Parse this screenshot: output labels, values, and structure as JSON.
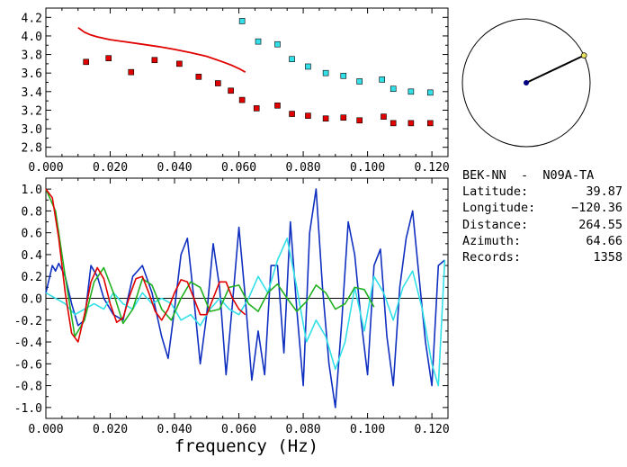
{
  "station": {
    "title": "BEK-NN  -  N09A-TA",
    "rows": [
      {
        "label": "Latitude:",
        "value": "39.87"
      },
      {
        "label": "Longitude:",
        "value": "−120.36"
      },
      {
        "label": "Distance:",
        "value": "264.55"
      },
      {
        "label": "Azimuth:",
        "value": "64.66"
      },
      {
        "label": "Records:",
        "value": "1358"
      }
    ]
  },
  "colors": {
    "red": "#e00000",
    "cyan": "#33e0e8",
    "blue": "#1030c0",
    "green": "#20b020",
    "navy": "#000080",
    "yellow": "#e8e060"
  },
  "chart_data": [
    {
      "type": "scatter",
      "xlim": [
        0.0,
        0.125
      ],
      "ylim": [
        2.7,
        4.3
      ],
      "x_ticks": [
        "0.000",
        "0.020",
        "0.040",
        "0.060",
        "0.080",
        "0.100",
        "0.120"
      ],
      "y_ticks": [
        "2.8",
        "3.0",
        "3.2",
        "3.4",
        "3.6",
        "3.8",
        "4.0",
        "4.2"
      ],
      "series": [
        {
          "color": "#e00000",
          "style": "squares",
          "x": [
            0.0125,
            0.0195,
            0.0265,
            0.0338,
            0.0415,
            0.0475,
            0.0535,
            0.0575,
            0.061,
            0.0655,
            0.072,
            0.0765,
            0.0815,
            0.087,
            0.0925,
            0.0975,
            0.105,
            0.108,
            0.1135,
            0.1195
          ],
          "y": [
            3.72,
            3.76,
            3.61,
            3.74,
            3.7,
            3.56,
            3.49,
            3.41,
            3.31,
            3.22,
            3.25,
            3.16,
            3.14,
            3.11,
            3.12,
            3.09,
            3.13,
            3.06,
            3.06,
            3.06
          ]
        },
        {
          "color": "#33e0e8",
          "style": "squares",
          "x": [
            0.061,
            0.066,
            0.072,
            0.0765,
            0.0815,
            0.087,
            0.0925,
            0.0975,
            0.1045,
            0.108,
            0.1135,
            0.1195
          ],
          "y": [
            4.16,
            3.94,
            3.91,
            3.75,
            3.67,
            3.6,
            3.57,
            3.51,
            3.53,
            3.43,
            3.4,
            3.39
          ]
        },
        {
          "color": "#e00000",
          "style": "line",
          "x": [
            0.01,
            0.012,
            0.014,
            0.016,
            0.02,
            0.025,
            0.03,
            0.035,
            0.04,
            0.045,
            0.05,
            0.055,
            0.058,
            0.0605,
            0.062
          ],
          "y": [
            4.09,
            4.04,
            4.01,
            3.99,
            3.96,
            3.935,
            3.91,
            3.885,
            3.855,
            3.82,
            3.78,
            3.72,
            3.68,
            3.64,
            3.61
          ]
        }
      ]
    },
    {
      "type": "line",
      "xlim": [
        0.0,
        0.125
      ],
      "ylim": [
        -1.1,
        1.1
      ],
      "x_ticks": [
        "0.000",
        "0.020",
        "0.040",
        "0.060",
        "0.080",
        "0.100",
        "0.120"
      ],
      "y_ticks": [
        "1.0",
        "0.8",
        "0.6",
        "0.4",
        "0.2",
        "0.0",
        "-0.2",
        "-0.4",
        "-0.6",
        "-0.8",
        "-1.0"
      ],
      "xlabel": "frequency (Hz)",
      "series": [
        {
          "color": "#1030c0",
          "x": [
            0.0,
            0.002,
            0.003,
            0.004,
            0.006,
            0.008,
            0.01,
            0.012,
            0.014,
            0.016,
            0.018,
            0.021,
            0.024,
            0.027,
            0.03,
            0.033,
            0.036,
            0.038,
            0.04,
            0.042,
            0.044,
            0.046,
            0.048,
            0.05,
            0.052,
            0.054,
            0.056,
            0.058,
            0.06,
            0.062,
            0.064,
            0.066,
            0.068,
            0.07,
            0.072,
            0.074,
            0.076,
            0.078,
            0.08,
            0.082,
            0.084,
            0.086,
            0.088,
            0.09,
            0.092,
            0.094,
            0.096,
            0.098,
            0.1,
            0.102,
            0.104,
            0.106,
            0.108,
            0.11,
            0.112,
            0.114,
            0.116,
            0.118,
            0.12,
            0.122,
            0.124
          ],
          "y": [
            0.05,
            0.3,
            0.25,
            0.32,
            0.2,
            -0.05,
            -0.25,
            -0.2,
            0.3,
            0.2,
            0.0,
            -0.15,
            -0.2,
            0.2,
            0.3,
            0.05,
            -0.35,
            -0.55,
            -0.1,
            0.4,
            0.55,
            0.0,
            -0.6,
            -0.15,
            0.5,
            0.1,
            -0.7,
            -0.05,
            0.65,
            0.0,
            -0.75,
            -0.3,
            -0.7,
            0.3,
            0.3,
            -0.5,
            0.7,
            -0.1,
            -0.8,
            0.6,
            1.0,
            0.1,
            -0.6,
            -1.0,
            -0.2,
            0.7,
            0.4,
            -0.2,
            -0.7,
            0.3,
            0.45,
            -0.35,
            -0.8,
            0.1,
            0.55,
            0.8,
            0.2,
            -0.4,
            -0.8,
            0.3,
            0.35
          ]
        },
        {
          "color": "#33e0e8",
          "x": [
            0.0,
            0.003,
            0.006,
            0.009,
            0.012,
            0.015,
            0.018,
            0.021,
            0.024,
            0.027,
            0.03,
            0.033,
            0.036,
            0.039,
            0.042,
            0.045,
            0.048,
            0.051,
            0.054,
            0.057,
            0.06,
            0.063,
            0.066,
            0.069,
            0.072,
            0.075,
            0.078,
            0.081,
            0.084,
            0.087,
            0.09,
            0.093,
            0.096,
            0.099,
            0.102,
            0.105,
            0.108,
            0.111,
            0.114,
            0.117,
            0.12,
            0.122,
            0.124
          ],
          "y": [
            0.05,
            0.0,
            -0.05,
            -0.15,
            -0.1,
            -0.05,
            -0.1,
            0.05,
            -0.05,
            -0.1,
            0.05,
            -0.05,
            0.0,
            -0.05,
            -0.2,
            -0.15,
            -0.25,
            -0.1,
            0.0,
            -0.1,
            -0.15,
            0.0,
            0.2,
            0.05,
            0.35,
            0.55,
            0.1,
            -0.4,
            -0.2,
            -0.35,
            -0.65,
            -0.4,
            0.1,
            -0.3,
            0.2,
            0.05,
            -0.2,
            0.1,
            0.25,
            -0.1,
            -0.6,
            -0.8,
            0.35
          ]
        },
        {
          "color": "#20b020",
          "x": [
            0.0,
            0.003,
            0.006,
            0.009,
            0.012,
            0.015,
            0.018,
            0.021,
            0.024,
            0.027,
            0.03,
            0.033,
            0.036,
            0.039,
            0.042,
            0.045,
            0.048,
            0.051,
            0.054,
            0.057,
            0.06,
            0.063,
            0.066,
            0.069,
            0.072,
            0.075,
            0.078,
            0.081,
            0.084,
            0.087,
            0.09,
            0.093,
            0.096,
            0.099,
            0.102
          ],
          "y": [
            1.0,
            0.8,
            0.2,
            -0.35,
            -0.2,
            0.15,
            0.28,
            0.05,
            -0.23,
            -0.1,
            0.18,
            0.12,
            -0.1,
            -0.2,
            0.0,
            0.15,
            0.1,
            -0.12,
            -0.1,
            0.1,
            0.12,
            -0.05,
            -0.12,
            0.05,
            0.13,
            0.0,
            -0.12,
            -0.03,
            0.12,
            0.05,
            -0.1,
            -0.05,
            0.1,
            0.08,
            -0.08
          ]
        },
        {
          "color": "#e00000",
          "x": [
            0.0,
            0.002,
            0.004,
            0.006,
            0.008,
            0.01,
            0.012,
            0.014,
            0.016,
            0.018,
            0.02,
            0.022,
            0.024,
            0.026,
            0.028,
            0.03,
            0.032,
            0.034,
            0.036,
            0.038,
            0.04,
            0.042,
            0.044,
            0.046,
            0.048,
            0.05,
            0.052,
            0.054,
            0.056,
            0.058,
            0.06,
            0.062
          ],
          "y": [
            1.0,
            0.92,
            0.55,
            0.05,
            -0.32,
            -0.4,
            -0.15,
            0.15,
            0.28,
            0.18,
            -0.05,
            -0.22,
            -0.18,
            0.02,
            0.18,
            0.2,
            0.05,
            -0.12,
            -0.2,
            -0.1,
            0.05,
            0.17,
            0.15,
            0.0,
            -0.15,
            -0.15,
            0.0,
            0.15,
            0.15,
            0.0,
            -0.1,
            -0.15
          ]
        }
      ]
    }
  ],
  "compass": {
    "azimuth_deg": 64.66
  }
}
